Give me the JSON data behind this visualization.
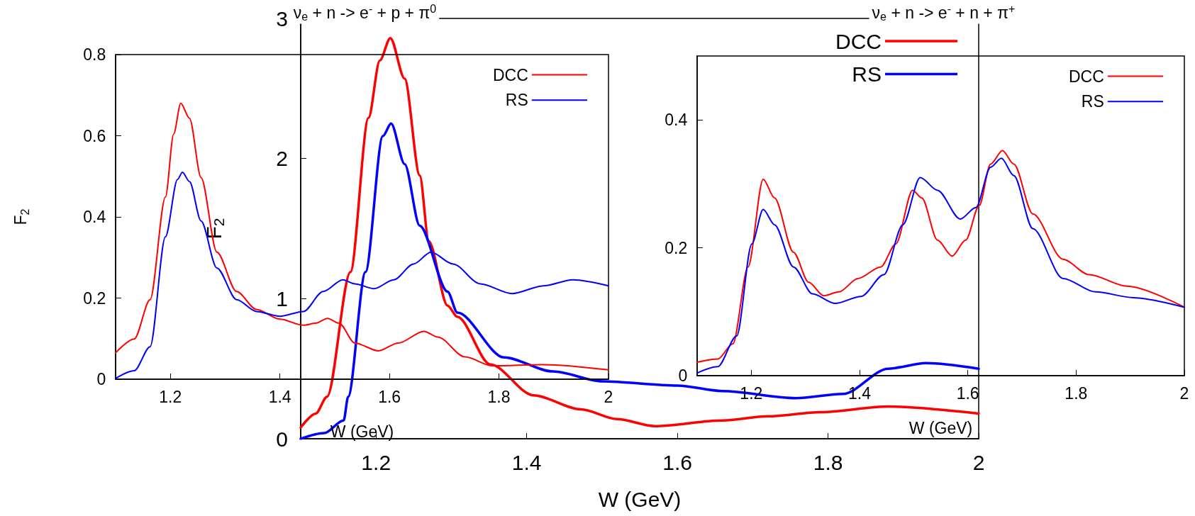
{
  "chart_data": [
    {
      "type": "line",
      "title": "ν$_{e}$ + n -> e$^{-}$ + p + π$^{0}$",
      "xlabel": "W (GeV)",
      "ylabel": "F$_{2}$",
      "xlim": [
        1.1,
        2
      ],
      "xticks": [
        1.2,
        1.4,
        1.6,
        1.8,
        2
      ],
      "ylim": [
        0,
        0.8
      ],
      "yticks": [
        0,
        0.2,
        0.4,
        0.6,
        0.8
      ],
      "legend": "top right",
      "marker": "none",
      "series": [
        {
          "name": "DCC",
          "color": "#ff0000",
          "x": [
            1.1,
            1.134,
            1.163,
            1.191,
            1.206,
            1.219,
            1.235,
            1.256,
            1.285,
            1.321,
            1.357,
            1.4,
            1.443,
            1.465,
            1.487,
            1.508,
            1.537,
            1.58,
            1.616,
            1.663,
            1.688,
            1.738,
            1.788,
            1.882,
            2.0
          ],
          "values": [
            0.065,
            0.099,
            0.196,
            0.449,
            0.604,
            0.68,
            0.643,
            0.497,
            0.313,
            0.216,
            0.172,
            0.148,
            0.133,
            0.138,
            0.15,
            0.138,
            0.089,
            0.07,
            0.089,
            0.118,
            0.104,
            0.055,
            0.033,
            0.036,
            0.023
          ]
        },
        {
          "name": "RS",
          "color": "#0000ff",
          "x": [
            1.1,
            1.134,
            1.163,
            1.191,
            1.213,
            1.222,
            1.235,
            1.256,
            1.285,
            1.321,
            1.357,
            1.4,
            1.443,
            1.479,
            1.515,
            1.537,
            1.572,
            1.608,
            1.644,
            1.676,
            1.716,
            1.766,
            1.824,
            1.881,
            1.935,
            2.0
          ],
          "values": [
            0.002,
            0.021,
            0.08,
            0.351,
            0.492,
            0.51,
            0.487,
            0.39,
            0.274,
            0.196,
            0.167,
            0.155,
            0.167,
            0.216,
            0.245,
            0.235,
            0.223,
            0.245,
            0.284,
            0.313,
            0.284,
            0.235,
            0.211,
            0.23,
            0.245,
            0.23
          ]
        }
      ]
    },
    {
      "type": "line",
      "xlabel": "W (GeV)",
      "ylabel": "F$_{2}$",
      "xlim": [
        1.1,
        2
      ],
      "xticks": [
        1.2,
        1.4,
        1.6,
        1.8,
        2
      ],
      "ylim": [
        0,
        3
      ],
      "yticks": [
        0,
        1,
        2,
        3
      ],
      "legend": "top right",
      "marker": "none",
      "series": [
        {
          "name": "DCC",
          "color": "#ff0000",
          "x": [
            1.1,
            1.12,
            1.135,
            1.166,
            1.19,
            1.205,
            1.219,
            1.238,
            1.258,
            1.27,
            1.295,
            1.308,
            1.352,
            1.409,
            1.472,
            1.52,
            1.57,
            1.66,
            1.72,
            1.79,
            1.88,
            2.0
          ],
          "values": [
            0.08,
            0.18,
            0.3,
            1.19,
            2.29,
            2.7,
            2.86,
            2.57,
            1.88,
            1.41,
            0.95,
            0.87,
            0.53,
            0.31,
            0.21,
            0.14,
            0.09,
            0.13,
            0.16,
            0.19,
            0.23,
            0.18
          ]
        },
        {
          "name": "RS",
          "color": "#0000ff",
          "x": [
            1.1,
            1.131,
            1.157,
            1.163,
            1.186,
            1.209,
            1.22,
            1.238,
            1.258,
            1.295,
            1.308,
            1.37,
            1.435,
            1.5,
            1.6,
            1.66,
            1.757,
            1.82,
            1.88,
            1.93,
            2.0
          ],
          "values": [
            0.0,
            0.04,
            0.13,
            0.3,
            1.19,
            2.16,
            2.25,
            1.96,
            1.52,
            1.05,
            0.9,
            0.58,
            0.48,
            0.41,
            0.38,
            0.34,
            0.29,
            0.32,
            0.5,
            0.54,
            0.5
          ]
        }
      ]
    },
    {
      "type": "line",
      "title": "ν$_{e}$ + n -> e$^{-}$ + n + π$^{+}$",
      "xlabel": "W (GeV)",
      "xlim": [
        1.1,
        2
      ],
      "xticks": [
        1.2,
        1.4,
        1.6,
        1.8,
        2
      ],
      "ylim": [
        0,
        0.5
      ],
      "yticks": [
        0,
        0.2,
        0.4
      ],
      "legend": "top right",
      "marker": "none",
      "series": [
        {
          "name": "DCC",
          "color": "#ff0000",
          "x": [
            1.1,
            1.138,
            1.166,
            1.194,
            1.222,
            1.243,
            1.278,
            1.306,
            1.334,
            1.362,
            1.397,
            1.439,
            1.467,
            1.498,
            1.515,
            1.544,
            1.571,
            1.596,
            1.621,
            1.642,
            1.664,
            1.685,
            1.72,
            1.776,
            1.824,
            1.894,
            2.0
          ],
          "values": [
            0.021,
            0.026,
            0.05,
            0.17,
            0.307,
            0.278,
            0.193,
            0.146,
            0.125,
            0.131,
            0.152,
            0.17,
            0.206,
            0.29,
            0.278,
            0.212,
            0.187,
            0.212,
            0.266,
            0.331,
            0.352,
            0.331,
            0.253,
            0.182,
            0.158,
            0.14,
            0.107
          ]
        },
        {
          "name": "RS",
          "color": "#0000ff",
          "x": [
            1.1,
            1.138,
            1.173,
            1.201,
            1.222,
            1.243,
            1.278,
            1.313,
            1.355,
            1.403,
            1.445,
            1.48,
            1.512,
            1.544,
            1.586,
            1.615,
            1.642,
            1.662,
            1.685,
            1.72,
            1.776,
            1.836,
            1.906,
            2.0
          ],
          "values": [
            0.004,
            0.014,
            0.062,
            0.206,
            0.26,
            0.236,
            0.17,
            0.128,
            0.113,
            0.124,
            0.158,
            0.236,
            0.31,
            0.29,
            0.245,
            0.263,
            0.326,
            0.34,
            0.313,
            0.23,
            0.152,
            0.131,
            0.122,
            0.107
          ]
        }
      ]
    }
  ]
}
